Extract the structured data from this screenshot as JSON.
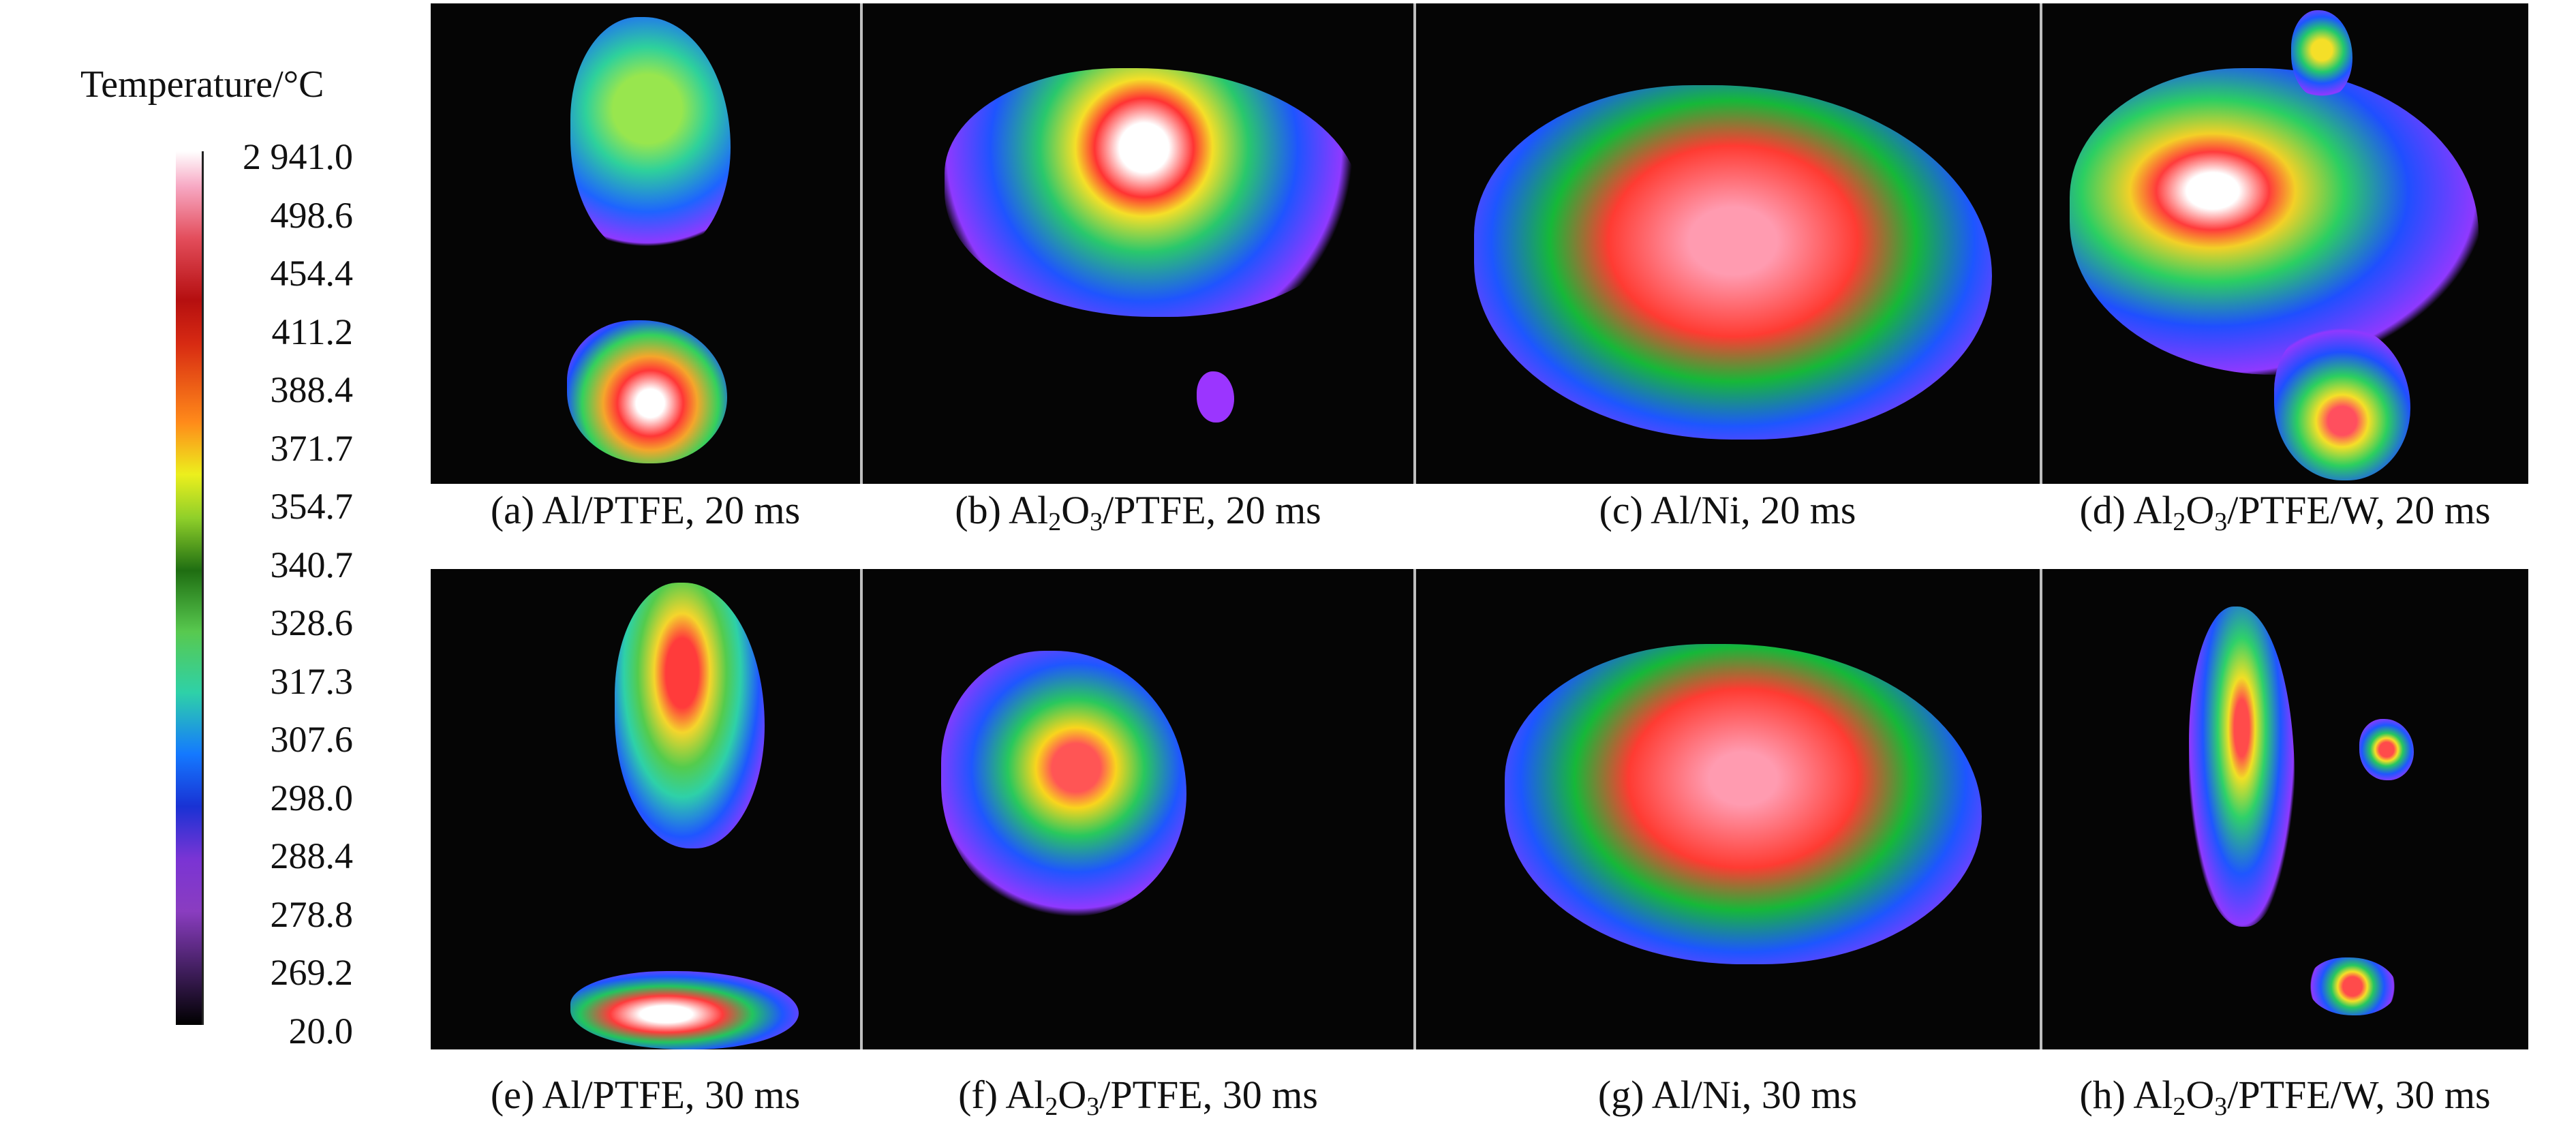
{
  "legend": {
    "title": "Temperature/°C",
    "ticks": [
      "2 941.0",
      "498.6",
      "454.4",
      "411.2",
      "388.4",
      "371.7",
      "354.7",
      "340.7",
      "328.6",
      "317.3",
      "307.6",
      "298.0",
      "288.4",
      "278.8",
      "269.2",
      "20.0"
    ]
  },
  "panels": [
    {
      "name": "(a) Al/PTFE, 20 ms",
      "prefix": "(a) Al/PTFE, 20 ms",
      "sub1": "",
      "mid": "",
      "sub2": "",
      "suffix": ""
    },
    {
      "name": "(b) Al2O3/PTFE, 20 ms",
      "prefix": "(b) Al",
      "sub1": "2",
      "mid": "O",
      "sub2": "3",
      "suffix": "/PTFE, 20 ms"
    },
    {
      "name": "(c) Al/Ni, 20 ms",
      "prefix": "(c) Al/Ni, 20 ms",
      "sub1": "",
      "mid": "",
      "sub2": "",
      "suffix": ""
    },
    {
      "name": "(d) Al2O3/PTFE/W, 20 ms",
      "prefix": "(d) Al",
      "sub1": "2",
      "mid": "O",
      "sub2": "3",
      "suffix": "/PTFE/W, 20 ms"
    },
    {
      "name": "(e) Al/PTFE, 30 ms",
      "prefix": "(e) Al/PTFE, 30 ms",
      "sub1": "",
      "mid": "",
      "sub2": "",
      "suffix": ""
    },
    {
      "name": "(f) Al2O3/PTFE, 30 ms",
      "prefix": "(f) Al",
      "sub1": "2",
      "mid": "O",
      "sub2": "3",
      "suffix": "/PTFE, 30 ms"
    },
    {
      "name": "(g) Al/Ni, 30 ms",
      "prefix": "(g) Al/Ni, 30 ms",
      "sub1": "",
      "mid": "",
      "sub2": "",
      "suffix": ""
    },
    {
      "name": "(h) Al2O3/PTFE/W, 30 ms",
      "prefix": "(h) Al",
      "sub1": "2",
      "mid": "O",
      "sub2": "3",
      "suffix": "/PTFE/W, 30 ms"
    }
  ],
  "colors": {
    "background": "#050505",
    "hot": "#ff3b3b",
    "mid": "#25d05c",
    "cool": "#1f48ff",
    "edge": "#8f39ff"
  }
}
